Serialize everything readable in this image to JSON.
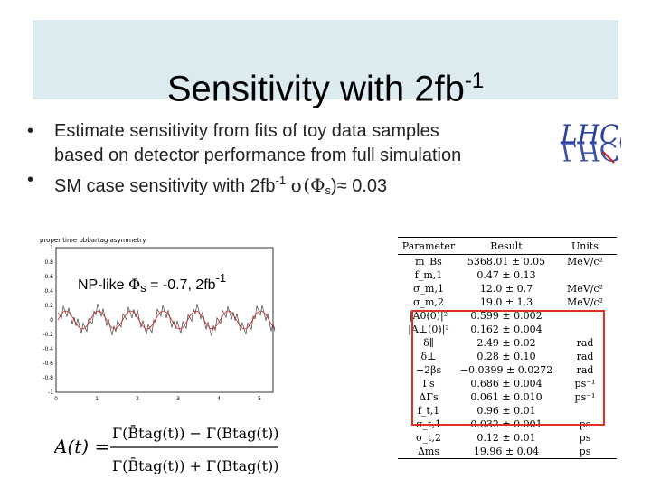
{
  "slide": {
    "title": "Sensitivity with 2fb",
    "title_sup": "-1",
    "bullet1_line1": "Estimate sensitivity from fits of toy data samples",
    "bullet1_line2": "based on detector performance from full simulation",
    "bullet2_pre": "SM case sensitivity with 2fb",
    "bullet2_sup": "-1",
    "bullet2_sigma": "σ(",
    "bullet2_phi": "Φ",
    "bullet2_sub": "s",
    "bullet2_post": ")≈ 0.03",
    "logo_text": "LHCb",
    "np_label_pre": "NP-like ",
    "np_phi": "Φ",
    "np_sub": "s",
    "np_label_post": " = -0.7, 2fb",
    "np_sup": "-1"
  },
  "plot": {
    "title": "proper time bbbartag asymmetry",
    "y_ticks": [
      "1",
      "0.8",
      "0.6",
      "0.4",
      "0.2",
      "0",
      "-0.2",
      "-0.4",
      "-0.6",
      "-0.8",
      "-1"
    ],
    "x_ticks": [
      "0",
      "1",
      "2",
      "3",
      "4",
      "5"
    ]
  },
  "formula": {
    "lhs": "A(t) =",
    "num": "Γ(B̄tag(t)) − Γ(Btag(t))",
    "den": "Γ(B̄tag(t)) + Γ(Btag(t))"
  },
  "table": {
    "headers": [
      "Parameter",
      "Result",
      "Units"
    ],
    "rows": [
      [
        "m_Bs",
        "5368.01 ± 0.05",
        "MeV/c²"
      ],
      [
        "f_m,1",
        "0.47 ± 0.13",
        ""
      ],
      [
        "σ_m,1",
        "12.0 ± 0.7",
        "MeV/c²"
      ],
      [
        "σ_m,2",
        "19.0 ± 1.3",
        "MeV/c²"
      ],
      [
        "|A0(0)|²",
        "0.599 ± 0.002",
        ""
      ],
      [
        "|A⊥(0)|²",
        "0.162 ± 0.004",
        ""
      ],
      [
        "δ∥",
        "2.49 ± 0.02",
        "rad"
      ],
      [
        "δ⊥",
        "0.28 ± 0.10",
        "rad"
      ],
      [
        "−2βs",
        "−0.0399 ± 0.0272",
        "rad"
      ],
      [
        "Γs",
        "0.686 ± 0.004",
        "ps⁻¹"
      ],
      [
        "ΔΓs",
        "0.061 ± 0.010",
        "ps⁻¹"
      ],
      [
        "f_t,1",
        "0.96 ± 0.01",
        ""
      ],
      [
        "σ_t,1",
        "0.032 ± 0.001",
        "ps"
      ],
      [
        "σ_t,2",
        "0.12 ± 0.01",
        "ps"
      ],
      [
        "Δms",
        "19.96 ± 0.04",
        "ps"
      ]
    ]
  },
  "colors": {
    "title_bg": "#dcebef",
    "highlight": "#e03020",
    "logo_blue": "#2a3fa0",
    "logo_red": "#d02020"
  }
}
